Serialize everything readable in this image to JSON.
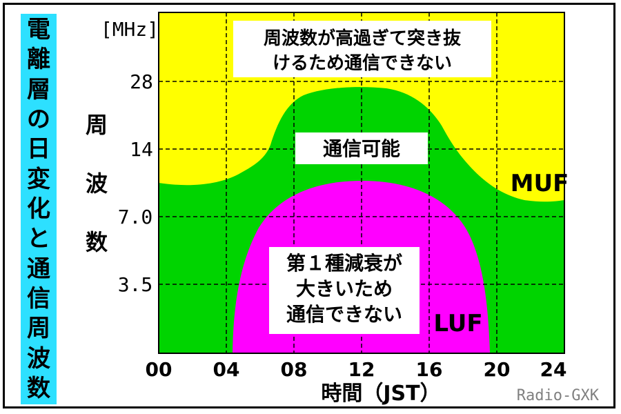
{
  "title_vertical": "電離層の日変化と通信周波数",
  "y_axis": {
    "unit": "[MHz]",
    "label_chars": [
      "周",
      "波",
      "数"
    ],
    "ticks": [
      "28",
      "14",
      "7.0",
      "3.5"
    ]
  },
  "x_axis": {
    "label": "時間（JST）",
    "ticks": [
      "00",
      "04",
      "08",
      "12",
      "16",
      "20",
      "24"
    ]
  },
  "regions": {
    "top_line1": "周波数が高過ぎて突き抜",
    "top_line2": "けるため通信できない",
    "middle": "通信可能",
    "bottom_line1": "第１種減衰が",
    "bottom_line2": "大きいため",
    "bottom_line3": "通信できない"
  },
  "curve_labels": {
    "muf": "MUF",
    "luf": "LUF"
  },
  "credit": "Radio-GXK",
  "colors": {
    "above_muf": "#ffff00",
    "usable": "#00d400",
    "below_luf": "#ff00ff",
    "title_bg": "#2de0ff"
  }
}
